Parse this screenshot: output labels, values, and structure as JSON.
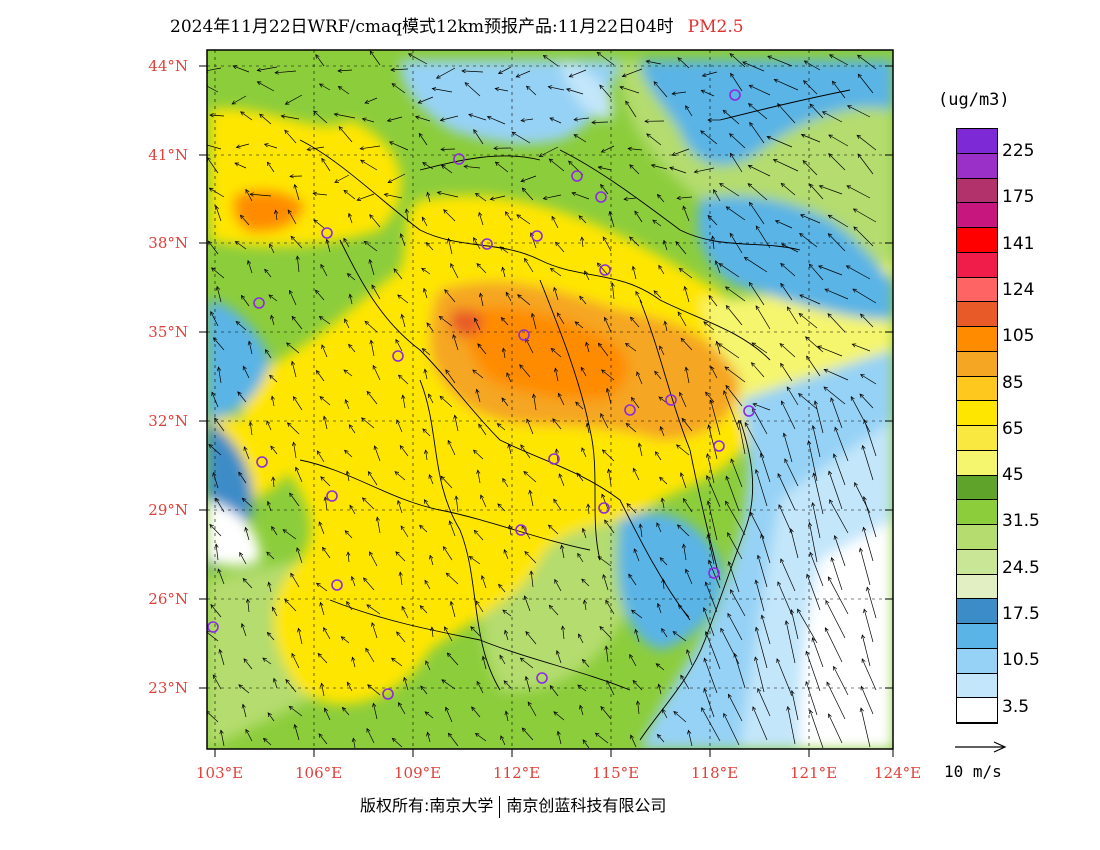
{
  "title": {
    "main": "2024年11月22日WRF/cmaq模式12km预报产品:11月22日04时",
    "pollutant": "PM2.5"
  },
  "axes": {
    "lat_labels": [
      "44°N",
      "41°N",
      "38°N",
      "35°N",
      "32°N",
      "29°N",
      "26°N",
      "23°N"
    ],
    "lon_labels": [
      "103°E",
      "106°E",
      "109°E",
      "112°E",
      "115°E",
      "118°E",
      "121°E",
      "124°E"
    ]
  },
  "colorbar": {
    "unit": "(ug/m3)",
    "colors": [
      "#7d2ad6",
      "#9b30c8",
      "#b2326b",
      "#c8167f",
      "#ff0000",
      "#f01c4a",
      "#ff6464",
      "#e85a28",
      "#ff8c00",
      "#f5a623",
      "#ffc81e",
      "#ffe600",
      "#f8e840",
      "#f5f56e",
      "#5fa32a",
      "#8ccd3c",
      "#b4dc6e",
      "#c8e696",
      "#e1efc3",
      "#3c8cc8",
      "#5ab4e6",
      "#96d2f5",
      "#c3e6fa",
      "#ffffff"
    ],
    "labels": [
      "225",
      "175",
      "141",
      "124",
      "105",
      "85",
      "65",
      "45",
      "31.5",
      "24.5",
      "17.5",
      "10.5",
      "3.5"
    ]
  },
  "wind_reference": {
    "label": "10 m/s"
  },
  "footer": {
    "left": "版权所有:南京大学",
    "right": "南京创蓝科技有限公司"
  },
  "legend_colors": {
    "accent": "#e03131",
    "station": "#8a2be2",
    "boundary": "#000000"
  }
}
